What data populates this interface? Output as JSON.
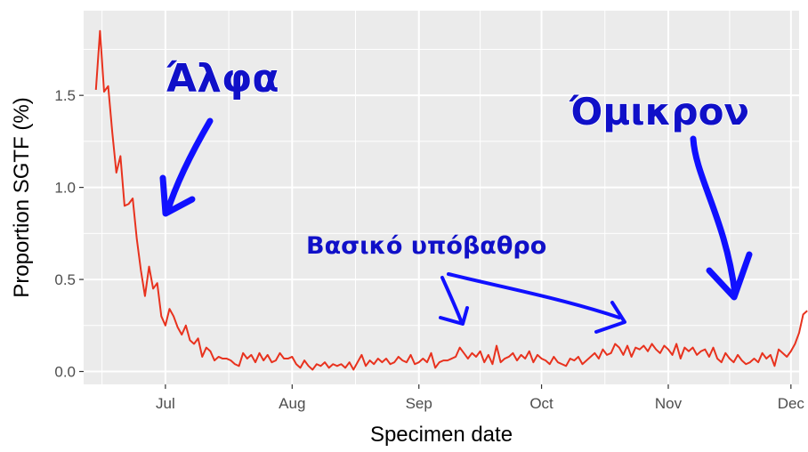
{
  "chart_data": {
    "type": "line",
    "xlabel": "Specimen date",
    "ylabel": "Proportion SGTF (%)",
    "x_tick_labels": [
      "Jul",
      "Aug",
      "Sep",
      "Oct",
      "Nov",
      "Dec"
    ],
    "x_tick_dates": [
      "2021-07-01",
      "2021-08-01",
      "2021-09-01",
      "2021-10-01",
      "2021-11-01",
      "2021-12-01"
    ],
    "y_tick_labels": [
      "0.0",
      "0.5",
      "1.0",
      "1.5"
    ],
    "y_ticks": [
      0,
      0.5,
      1.0,
      1.5
    ],
    "xlim": [
      "2021-06-11",
      "2021-12-03"
    ],
    "ylim": [
      -0.07,
      1.96
    ],
    "grid": true,
    "line_color": "#e8321e",
    "panel_color": "#ebebeb",
    "annotations": [
      {
        "text": "Άλφα",
        "color": "#1010c8"
      },
      {
        "text": "Όμικρον",
        "color": "#1010c8"
      },
      {
        "text": "Βασικό υπόβαθρο",
        "color": "#1010c8"
      }
    ],
    "series": [
      {
        "start_date": "2021-06-14",
        "values": [
          1.53,
          1.85,
          1.52,
          1.55,
          1.3,
          1.08,
          1.17,
          0.9,
          0.91,
          0.94,
          0.72,
          0.55,
          0.41,
          0.57,
          0.45,
          0.48,
          0.3,
          0.25,
          0.34,
          0.3,
          0.24,
          0.2,
          0.25,
          0.17,
          0.15,
          0.18,
          0.08,
          0.13,
          0.11,
          0.06,
          0.08,
          0.07,
          0.07,
          0.06,
          0.04,
          0.03,
          0.1,
          0.07,
          0.09,
          0.05,
          0.1,
          0.06,
          0.09,
          0.05,
          0.06,
          0.1,
          0.07,
          0.07,
          0.08,
          0.04,
          0.02,
          0.06,
          0.03,
          0.01,
          0.04,
          0.03,
          0.05,
          0.02,
          0.04,
          0.03,
          0.04,
          0.02,
          0.05,
          0.01,
          0.05,
          0.09,
          0.03,
          0.06,
          0.04,
          0.07,
          0.05,
          0.07,
          0.04,
          0.05,
          0.08,
          0.06,
          0.05,
          0.09,
          0.04,
          0.05,
          0.07,
          0.05,
          0.1,
          0.02,
          0.05,
          0.06,
          0.06,
          0.07,
          0.08,
          0.13,
          0.1,
          0.07,
          0.1,
          0.08,
          0.11,
          0.05,
          0.09,
          0.04,
          0.14,
          0.05,
          0.07,
          0.08,
          0.1,
          0.06,
          0.09,
          0.07,
          0.11,
          0.05,
          0.09,
          0.07,
          0.06,
          0.04,
          0.08,
          0.05,
          0.04,
          0.03,
          0.07,
          0.06,
          0.08,
          0.04,
          0.06,
          0.08,
          0.1,
          0.07,
          0.12,
          0.09,
          0.1,
          0.15,
          0.13,
          0.09,
          0.14,
          0.08,
          0.13,
          0.12,
          0.14,
          0.11,
          0.15,
          0.12,
          0.1,
          0.14,
          0.12,
          0.09,
          0.15,
          0.07,
          0.13,
          0.11,
          0.13,
          0.09,
          0.11,
          0.12,
          0.08,
          0.13,
          0.07,
          0.05,
          0.1,
          0.07,
          0.05,
          0.09,
          0.06,
          0.04,
          0.05,
          0.07,
          0.05,
          0.1,
          0.07,
          0.09,
          0.03,
          0.12,
          0.1,
          0.08,
          0.11,
          0.15,
          0.21,
          0.31,
          0.33
        ]
      }
    ]
  }
}
